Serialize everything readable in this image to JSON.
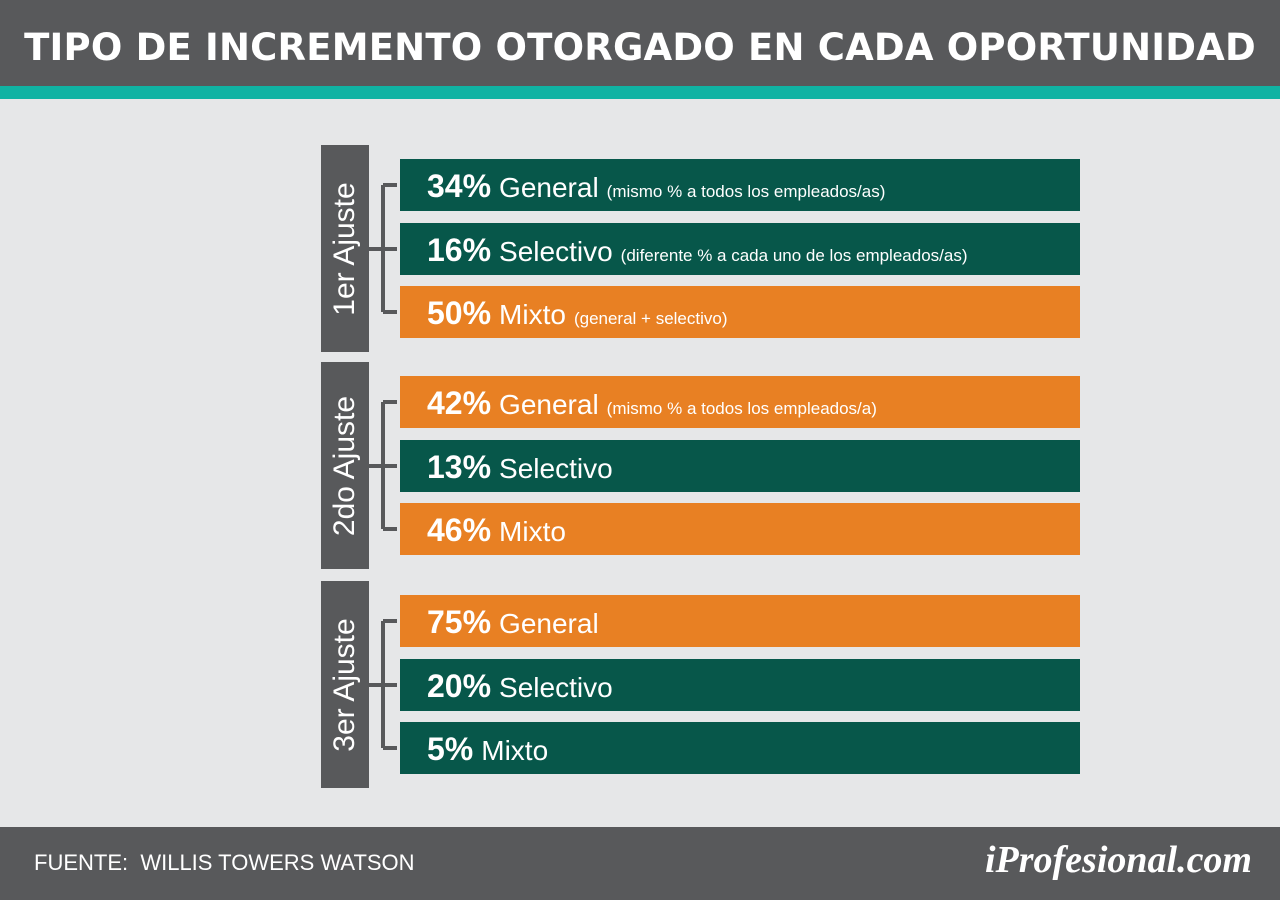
{
  "title": "TIPO DE INCREMENTO OTORGADO EN CADA OPORTUNIDAD",
  "source": "FUENTE:  WILLIS TOWERS WATSON",
  "logo": "iProfesional.com",
  "colors": {
    "general_green": "#07574a",
    "orange": "#e88023",
    "gray": "#58595b",
    "teal": "#10b3a3",
    "background": "#e6e7e8"
  },
  "chart_data": {
    "type": "table",
    "title": "TIPO DE INCREMENTO OTORGADO EN CADA OPORTUNIDAD",
    "groups": [
      {
        "label": "1er Ajuste",
        "rows": [
          {
            "pct": "34%",
            "name": "General",
            "note": "(mismo % a todos los empleados/as)",
            "value": 34,
            "highlight": false
          },
          {
            "pct": "16%",
            "name": "Selectivo",
            "note": "(diferente % a cada uno de los empleados/as)",
            "value": 16,
            "highlight": false
          },
          {
            "pct": "50%",
            "name": "Mixto",
            "note": "(general + selectivo)",
            "value": 50,
            "highlight": true
          }
        ]
      },
      {
        "label": "2do Ajuste",
        "rows": [
          {
            "pct": "42%",
            "name": "General",
            "note": "(mismo % a todos los empleados/a)",
            "value": 42,
            "highlight": true
          },
          {
            "pct": "13%",
            "name": "Selectivo",
            "note": "",
            "value": 13,
            "highlight": false
          },
          {
            "pct": "46%",
            "name": "Mixto",
            "note": "",
            "value": 46,
            "highlight": true
          }
        ]
      },
      {
        "label": "3er Ajuste",
        "rows": [
          {
            "pct": "75%",
            "name": "General",
            "note": "",
            "value": 75,
            "highlight": true
          },
          {
            "pct": "20%",
            "name": "Selectivo",
            "note": "",
            "value": 20,
            "highlight": false
          },
          {
            "pct": "5%",
            "name": "Mixto",
            "note": "",
            "value": 5,
            "highlight": false
          }
        ]
      }
    ]
  }
}
